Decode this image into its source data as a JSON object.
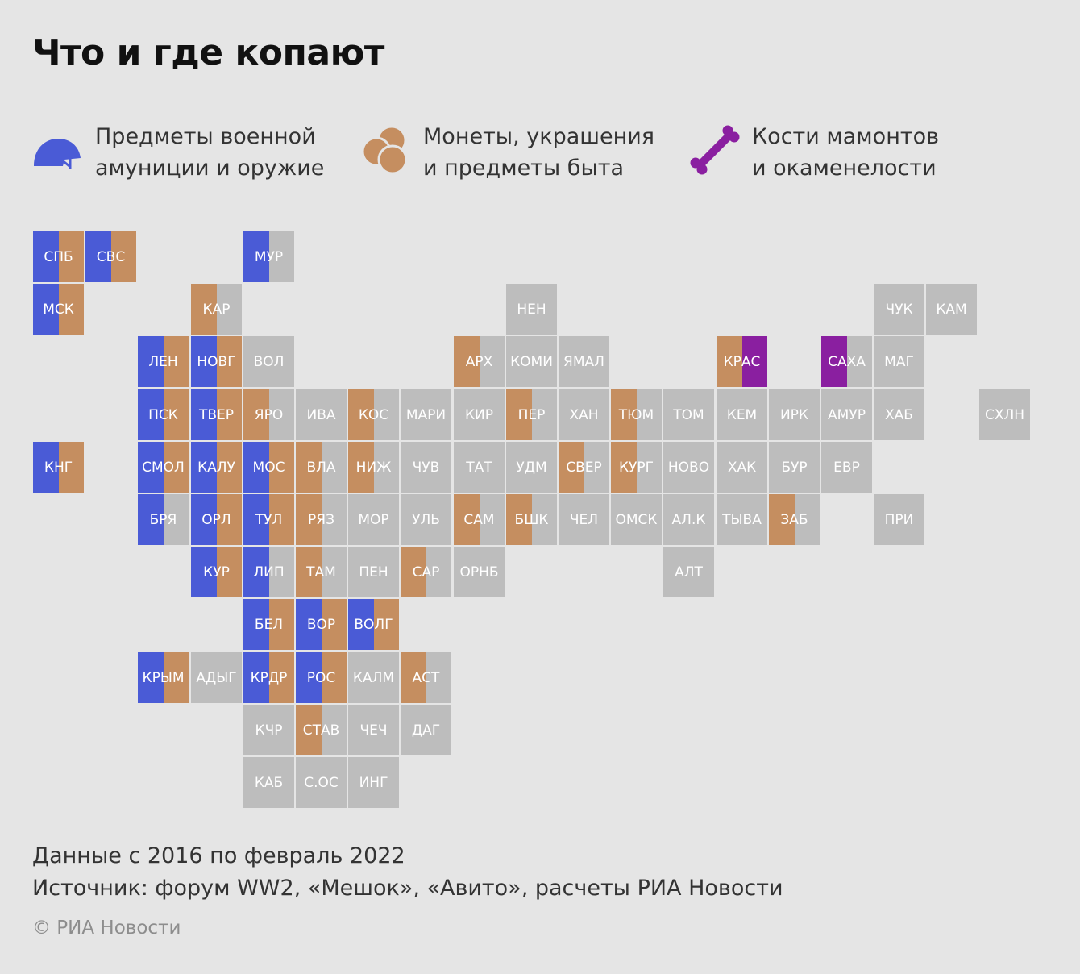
{
  "title": "Что и где копают",
  "colors": {
    "military": "#4a5bd6",
    "coins": "#c58e60",
    "bones": "#8a1fa0",
    "none": "#bdbdbd",
    "background": "#e5e5e5"
  },
  "legend": [
    {
      "key": "military",
      "icon": "helmet-icon",
      "line1": "Предметы военной",
      "line2": "амуниции и оружие"
    },
    {
      "key": "coins",
      "icon": "coins-icon",
      "line1": "Монеты, украшения",
      "line2": "и предметы быта"
    },
    {
      "key": "bones",
      "icon": "bone-icon",
      "line1": "Кости мамонтов",
      "line2": "и окаменелости"
    }
  ],
  "regions": [
    {
      "code": "СПБ",
      "col": 0,
      "row": 0,
      "left": "military",
      "right": "coins"
    },
    {
      "code": "СВС",
      "col": 1,
      "row": 0,
      "left": "military",
      "right": "coins"
    },
    {
      "code": "МУР",
      "col": 4,
      "row": 0,
      "left": "military",
      "right": "none"
    },
    {
      "code": "МСК",
      "col": 0,
      "row": 1,
      "left": "military",
      "right": "coins"
    },
    {
      "code": "КАР",
      "col": 3,
      "row": 1,
      "left": "coins",
      "right": "none"
    },
    {
      "code": "НЕН",
      "col": 9,
      "row": 1,
      "left": "none",
      "right": "none"
    },
    {
      "code": "ЧУК",
      "col": 16,
      "row": 1,
      "left": "none",
      "right": "none"
    },
    {
      "code": "КАМ",
      "col": 17,
      "row": 1,
      "left": "none",
      "right": "none"
    },
    {
      "code": "ЛЕН",
      "col": 2,
      "row": 2,
      "left": "military",
      "right": "coins"
    },
    {
      "code": "НОВГ",
      "col": 3,
      "row": 2,
      "left": "military",
      "right": "coins"
    },
    {
      "code": "ВОЛ",
      "col": 4,
      "row": 2,
      "left": "none",
      "right": "none"
    },
    {
      "code": "АРХ",
      "col": 8,
      "row": 2,
      "left": "coins",
      "right": "none"
    },
    {
      "code": "КОМИ",
      "col": 9,
      "row": 2,
      "left": "none",
      "right": "none"
    },
    {
      "code": "ЯМАЛ",
      "col": 10,
      "row": 2,
      "left": "none",
      "right": "none"
    },
    {
      "code": "КРАС",
      "col": 13,
      "row": 2,
      "left": "coins",
      "right": "bones"
    },
    {
      "code": "САХА",
      "col": 15,
      "row": 2,
      "left": "bones",
      "right": "none"
    },
    {
      "code": "МАГ",
      "col": 16,
      "row": 2,
      "left": "none",
      "right": "none"
    },
    {
      "code": "ПСК",
      "col": 2,
      "row": 3,
      "left": "military",
      "right": "coins"
    },
    {
      "code": "ТВЕР",
      "col": 3,
      "row": 3,
      "left": "military",
      "right": "coins"
    },
    {
      "code": "ЯРО",
      "col": 4,
      "row": 3,
      "left": "coins",
      "right": "none"
    },
    {
      "code": "ИВА",
      "col": 5,
      "row": 3,
      "left": "none",
      "right": "none"
    },
    {
      "code": "КОС",
      "col": 6,
      "row": 3,
      "left": "coins",
      "right": "none"
    },
    {
      "code": "МАРИ",
      "col": 7,
      "row": 3,
      "left": "none",
      "right": "none"
    },
    {
      "code": "КИР",
      "col": 8,
      "row": 3,
      "left": "none",
      "right": "none"
    },
    {
      "code": "ПЕР",
      "col": 9,
      "row": 3,
      "left": "coins",
      "right": "none"
    },
    {
      "code": "ХАН",
      "col": 10,
      "row": 3,
      "left": "none",
      "right": "none"
    },
    {
      "code": "ТЮМ",
      "col": 11,
      "row": 3,
      "left": "coins",
      "right": "none"
    },
    {
      "code": "ТОМ",
      "col": 12,
      "row": 3,
      "left": "none",
      "right": "none"
    },
    {
      "code": "КЕМ",
      "col": 13,
      "row": 3,
      "left": "none",
      "right": "none"
    },
    {
      "code": "ИРК",
      "col": 14,
      "row": 3,
      "left": "none",
      "right": "none"
    },
    {
      "code": "АМУР",
      "col": 15,
      "row": 3,
      "left": "none",
      "right": "none"
    },
    {
      "code": "ХАБ",
      "col": 16,
      "row": 3,
      "left": "none",
      "right": "none"
    },
    {
      "code": "СХЛН",
      "col": 18,
      "row": 3,
      "left": "none",
      "right": "none"
    },
    {
      "code": "КНГ",
      "col": 0,
      "row": 4,
      "left": "military",
      "right": "coins"
    },
    {
      "code": "СМОЛ",
      "col": 2,
      "row": 4,
      "left": "military",
      "right": "coins"
    },
    {
      "code": "КАЛУ",
      "col": 3,
      "row": 4,
      "left": "military",
      "right": "coins"
    },
    {
      "code": "МОС",
      "col": 4,
      "row": 4,
      "left": "military",
      "right": "coins"
    },
    {
      "code": "ВЛА",
      "col": 5,
      "row": 4,
      "left": "coins",
      "right": "none"
    },
    {
      "code": "НИЖ",
      "col": 6,
      "row": 4,
      "left": "coins",
      "right": "none"
    },
    {
      "code": "ЧУВ",
      "col": 7,
      "row": 4,
      "left": "none",
      "right": "none"
    },
    {
      "code": "ТАТ",
      "col": 8,
      "row": 4,
      "left": "none",
      "right": "none"
    },
    {
      "code": "УДМ",
      "col": 9,
      "row": 4,
      "left": "none",
      "right": "none"
    },
    {
      "code": "СВЕР",
      "col": 10,
      "row": 4,
      "left": "coins",
      "right": "none"
    },
    {
      "code": "КУРГ",
      "col": 11,
      "row": 4,
      "left": "coins",
      "right": "none"
    },
    {
      "code": "НОВО",
      "col": 12,
      "row": 4,
      "left": "none",
      "right": "none"
    },
    {
      "code": "ХАК",
      "col": 13,
      "row": 4,
      "left": "none",
      "right": "none"
    },
    {
      "code": "БУР",
      "col": 14,
      "row": 4,
      "left": "none",
      "right": "none"
    },
    {
      "code": "ЕВР",
      "col": 15,
      "row": 4,
      "left": "none",
      "right": "none"
    },
    {
      "code": "БРЯ",
      "col": 2,
      "row": 5,
      "left": "military",
      "right": "none"
    },
    {
      "code": "ОРЛ",
      "col": 3,
      "row": 5,
      "left": "military",
      "right": "coins"
    },
    {
      "code": "ТУЛ",
      "col": 4,
      "row": 5,
      "left": "military",
      "right": "coins"
    },
    {
      "code": "РЯЗ",
      "col": 5,
      "row": 5,
      "left": "coins",
      "right": "none"
    },
    {
      "code": "МОР",
      "col": 6,
      "row": 5,
      "left": "none",
      "right": "none"
    },
    {
      "code": "УЛЬ",
      "col": 7,
      "row": 5,
      "left": "none",
      "right": "none"
    },
    {
      "code": "САМ",
      "col": 8,
      "row": 5,
      "left": "coins",
      "right": "none"
    },
    {
      "code": "БШК",
      "col": 9,
      "row": 5,
      "left": "coins",
      "right": "none"
    },
    {
      "code": "ЧЕЛ",
      "col": 10,
      "row": 5,
      "left": "none",
      "right": "none"
    },
    {
      "code": "ОМСК",
      "col": 11,
      "row": 5,
      "left": "none",
      "right": "none"
    },
    {
      "code": "АЛ.К",
      "col": 12,
      "row": 5,
      "left": "none",
      "right": "none"
    },
    {
      "code": "ТЫВА",
      "col": 13,
      "row": 5,
      "left": "none",
      "right": "none"
    },
    {
      "code": "ЗАБ",
      "col": 14,
      "row": 5,
      "left": "coins",
      "right": "none"
    },
    {
      "code": "ПРИ",
      "col": 16,
      "row": 5,
      "left": "none",
      "right": "none"
    },
    {
      "code": "КУР",
      "col": 3,
      "row": 6,
      "left": "military",
      "right": "coins"
    },
    {
      "code": "ЛИП",
      "col": 4,
      "row": 6,
      "left": "military",
      "right": "none"
    },
    {
      "code": "ТАМ",
      "col": 5,
      "row": 6,
      "left": "coins",
      "right": "none"
    },
    {
      "code": "ПЕН",
      "col": 6,
      "row": 6,
      "left": "none",
      "right": "none"
    },
    {
      "code": "САР",
      "col": 7,
      "row": 6,
      "left": "coins",
      "right": "none"
    },
    {
      "code": "ОРНБ",
      "col": 8,
      "row": 6,
      "left": "none",
      "right": "none"
    },
    {
      "code": "АЛТ",
      "col": 12,
      "row": 6,
      "left": "none",
      "right": "none"
    },
    {
      "code": "БЕЛ",
      "col": 4,
      "row": 7,
      "left": "military",
      "right": "coins"
    },
    {
      "code": "ВОР",
      "col": 5,
      "row": 7,
      "left": "military",
      "right": "coins"
    },
    {
      "code": "ВОЛГ",
      "col": 6,
      "row": 7,
      "left": "military",
      "right": "coins"
    },
    {
      "code": "КРЫМ",
      "col": 2,
      "row": 8,
      "left": "military",
      "right": "coins"
    },
    {
      "code": "АДЫГ",
      "col": 3,
      "row": 8,
      "left": "none",
      "right": "none"
    },
    {
      "code": "КРДР",
      "col": 4,
      "row": 8,
      "left": "military",
      "right": "coins"
    },
    {
      "code": "РОС",
      "col": 5,
      "row": 8,
      "left": "military",
      "right": "coins"
    },
    {
      "code": "КАЛМ",
      "col": 6,
      "row": 8,
      "left": "none",
      "right": "none"
    },
    {
      "code": "АСТ",
      "col": 7,
      "row": 8,
      "left": "coins",
      "right": "none"
    },
    {
      "code": "КЧР",
      "col": 4,
      "row": 9,
      "left": "none",
      "right": "none"
    },
    {
      "code": "СТАВ",
      "col": 5,
      "row": 9,
      "left": "coins",
      "right": "none"
    },
    {
      "code": "ЧЕЧ",
      "col": 6,
      "row": 9,
      "left": "none",
      "right": "none"
    },
    {
      "code": "ДАГ",
      "col": 7,
      "row": 9,
      "left": "none",
      "right": "none"
    },
    {
      "code": "КАБ",
      "col": 4,
      "row": 10,
      "left": "none",
      "right": "none"
    },
    {
      "code": "С.ОС",
      "col": 5,
      "row": 10,
      "left": "none",
      "right": "none"
    },
    {
      "code": "ИНГ",
      "col": 6,
      "row": 10,
      "left": "none",
      "right": "none"
    }
  ],
  "footer": {
    "period": "Данные с 2016 по февраль 2022",
    "source": "Источник: форум WW2, «Мешок», «Авито», расчеты РИА Новости",
    "copyright": "© РИА Новости"
  }
}
